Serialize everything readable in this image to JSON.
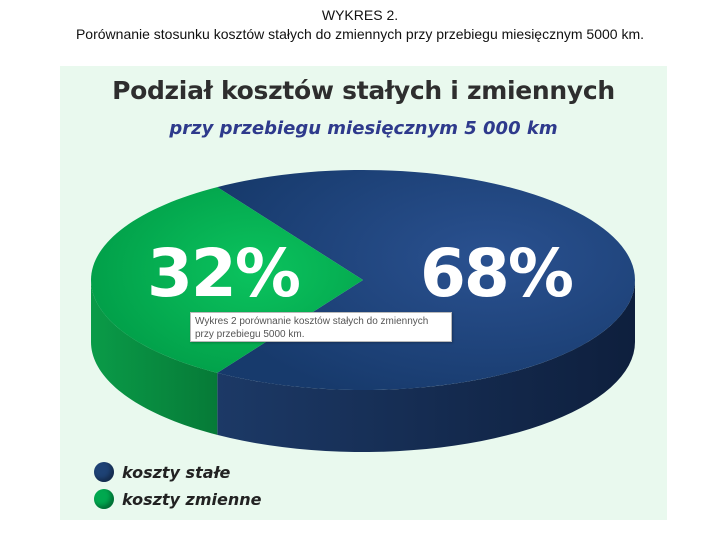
{
  "caption": {
    "line1": "WYKRES 2.",
    "line2": "Porównanie stosunku kosztów stałych do zmiennych przy przebiegu miesięcznym 5000 km."
  },
  "chart_data": {
    "type": "pie",
    "title": "Podział kosztów stałych i zmiennych",
    "subtitle": "przy przebiegu miesięcznym 5 000 km",
    "categories": [
      "koszty stałe",
      "koszty zmienne"
    ],
    "values": [
      68,
      32
    ],
    "value_labels": [
      "68%",
      "32%"
    ],
    "colors": [
      "#1e4275",
      "#00a84f"
    ],
    "legend_position": "bottom-left"
  },
  "tooltip": {
    "line1": "Wykres 2   porównanie kosztów stałych do zmiennych",
    "line2": "przy przebiegu 5000 km."
  }
}
